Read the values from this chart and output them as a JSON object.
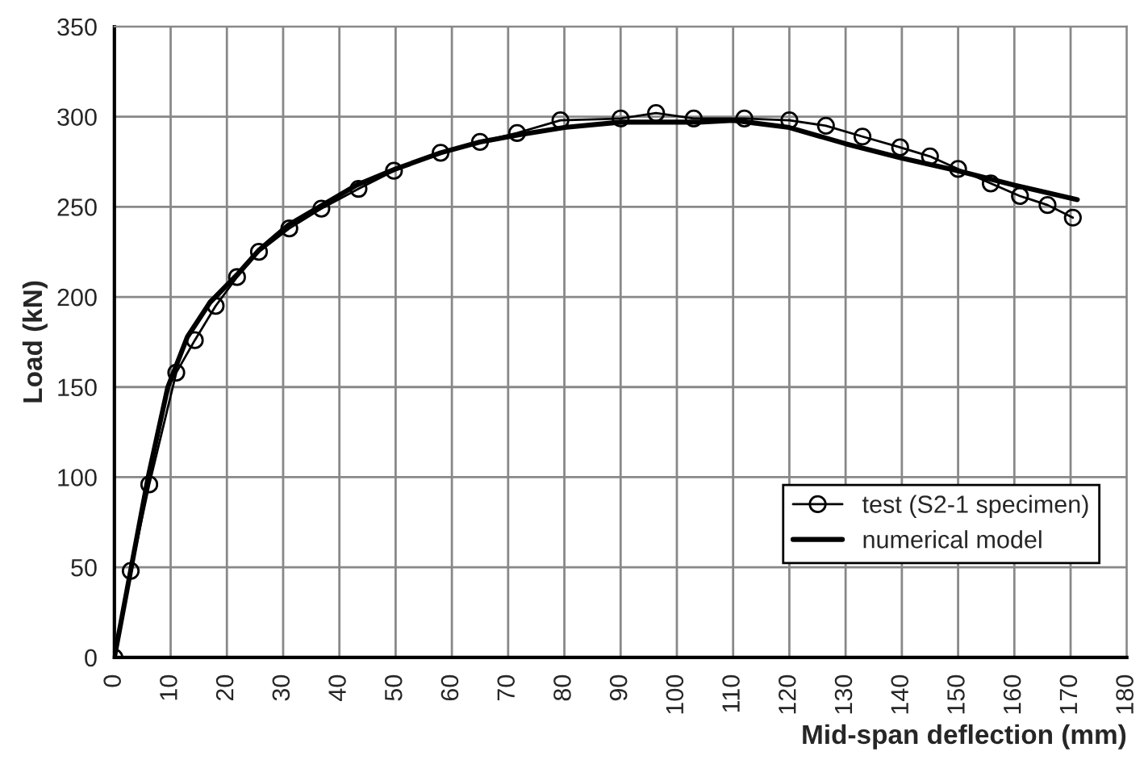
{
  "chart_data": {
    "type": "line",
    "xlabel": "Mid-span deflection (mm)",
    "ylabel": "Load (kN)",
    "xlim": [
      0,
      180
    ],
    "ylim": [
      0,
      350
    ],
    "xticks": [
      0,
      10,
      20,
      30,
      40,
      50,
      60,
      70,
      80,
      90,
      100,
      110,
      120,
      130,
      140,
      150,
      160,
      170,
      180
    ],
    "yticks": [
      0,
      50,
      100,
      150,
      200,
      250,
      300,
      350
    ],
    "grid": true,
    "legend": "bottom right",
    "series": [
      {
        "name": "test (S2-1 specimen)",
        "color": "#000000",
        "marker": "circle",
        "x": [
          0,
          2.9,
          6.2,
          11,
          14.3,
          18,
          21.8,
          25.7,
          31.1,
          36.8,
          43.4,
          49.7,
          58,
          65,
          71.6,
          79.3,
          90,
          96.3,
          103,
          112,
          120,
          126.5,
          133,
          139.7,
          145,
          150,
          155.8,
          161,
          165.9,
          170.4
        ],
        "values": [
          0,
          48,
          96,
          158,
          176,
          195,
          211,
          225,
          238,
          249,
          260,
          270,
          280,
          286,
          291,
          298,
          299,
          302,
          299,
          299,
          298,
          295,
          289,
          283,
          278,
          271,
          263,
          256,
          251,
          244
        ]
      },
      {
        "name": "numerical model",
        "color": "#000000",
        "marker": "none",
        "x": [
          0,
          3,
          6,
          9.5,
          13,
          17,
          22,
          25.7,
          31,
          37,
          43,
          50,
          58,
          65,
          72,
          80,
          90,
          96,
          104,
          110,
          120,
          130,
          140,
          150,
          160,
          171.2
        ],
        "values": [
          0,
          50,
          100,
          150,
          178,
          197,
          213,
          226,
          240,
          251,
          262,
          271,
          280,
          286,
          290,
          294,
          297,
          297,
          297,
          298,
          294,
          285,
          277,
          270,
          262,
          254
        ]
      }
    ]
  }
}
